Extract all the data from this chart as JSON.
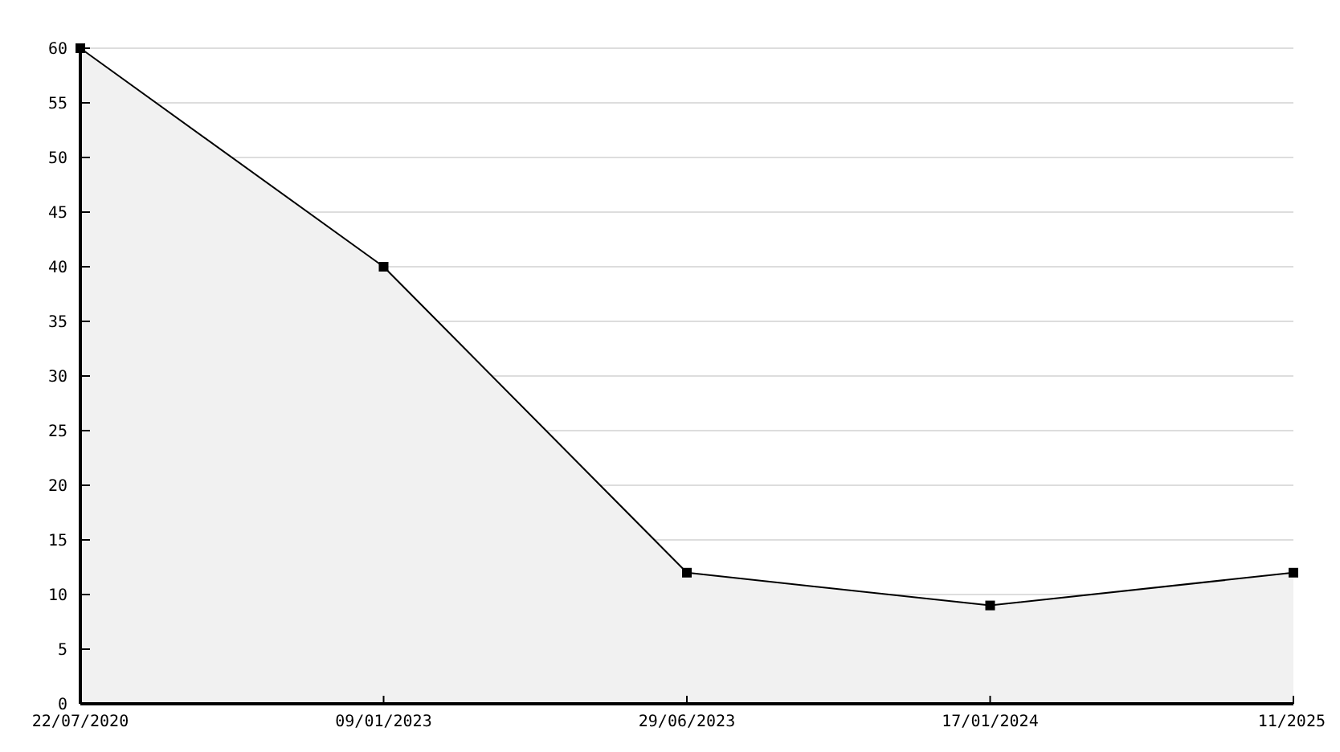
{
  "chart_data": {
    "type": "area",
    "categories": [
      "22/07/2020",
      "09/01/2023",
      "29/06/2023",
      "17/01/2024",
      "11/2025"
    ],
    "series": [
      {
        "color": "#000000",
        "values": [
          60,
          40,
          12,
          9,
          12
        ]
      }
    ],
    "ylim": [
      0,
      60
    ],
    "yticks": [
      0,
      5,
      10,
      15,
      20,
      25,
      30,
      35,
      40,
      45,
      50,
      55,
      60
    ],
    "grid": "y",
    "marker": "square",
    "line_style": "solid"
  }
}
